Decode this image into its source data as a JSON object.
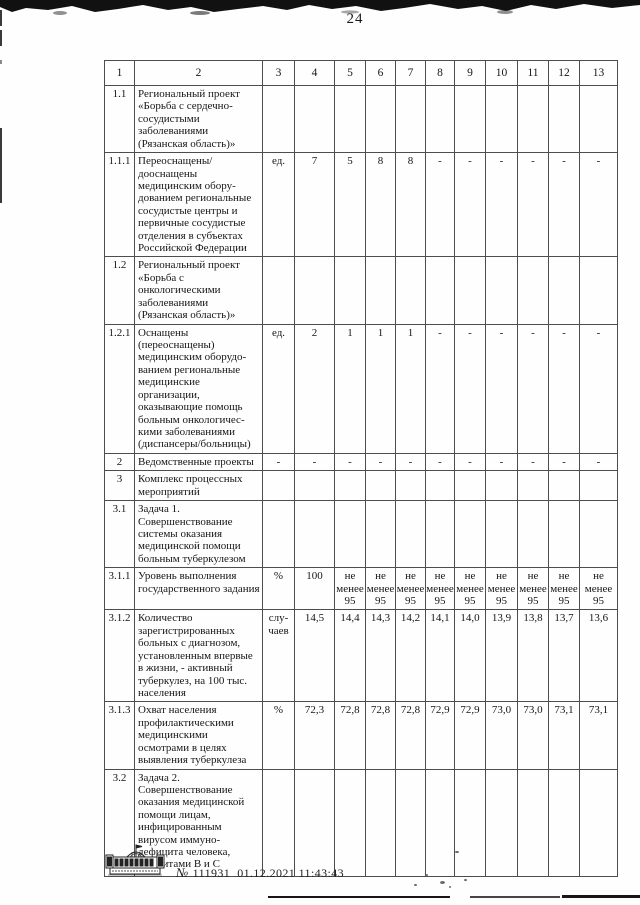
{
  "page": {
    "number": "24"
  },
  "table": {
    "header": [
      "1",
      "2",
      "3",
      "4",
      "5",
      "6",
      "7",
      "8",
      "9",
      "10",
      "11",
      "12",
      "13"
    ],
    "rows": [
      {
        "num": "1.1",
        "name": "Региональный проект «Борьба с сердечно-сосудистыми заболеваниями (Рязанская область)»",
        "unit": "",
        "values": [
          "",
          "",
          "",
          "",
          "",
          "",
          "",
          "",
          "",
          ""
        ]
      },
      {
        "num": "1.1.1",
        "name": "Переоснащены/дооснаще­ны медицинским обору­дованием региональные сосудистые центры и первичные сосудистые отделения в субъектах Российской Федерации",
        "unit": "ед.",
        "values": [
          "7",
          "5",
          "8",
          "8",
          "-",
          "-",
          "-",
          "-",
          "-",
          "-"
        ]
      },
      {
        "num": "1.2",
        "name": "Региональный проект «Борьба с онкологическими заболеваниями (Рязанская область)»",
        "unit": "",
        "values": [
          "",
          "",
          "",
          "",
          "",
          "",
          "",
          "",
          "",
          ""
        ]
      },
      {
        "num": "1.2.1",
        "name": "Оснащены (переоснащены) медицинским оборудо­ванием региональные медицинские организации, оказывающие помощь больным онкологичес­кими заболеваниями (диспансеры/больницы)",
        "unit": "ед.",
        "values": [
          "2",
          "1",
          "1",
          "1",
          "-",
          "-",
          "-",
          "-",
          "-",
          "-"
        ]
      },
      {
        "num": "2",
        "name": "Ведомственные проекты",
        "unit": "-",
        "values": [
          "-",
          "-",
          "-",
          "-",
          "-",
          "-",
          "-",
          "-",
          "-",
          "-"
        ]
      },
      {
        "num": "3",
        "name": "Комплекс процессных мероприятий",
        "unit": "",
        "values": [
          "",
          "",
          "",
          "",
          "",
          "",
          "",
          "",
          "",
          ""
        ]
      },
      {
        "num": "3.1",
        "name": "Задача 1. Совершенствование системы оказания медицинской помощи больным туберкулезом",
        "unit": "",
        "values": [
          "",
          "",
          "",
          "",
          "",
          "",
          "",
          "",
          "",
          ""
        ]
      },
      {
        "num": "3.1.1",
        "name": "Уровень выполнения государственного задания",
        "unit": "%",
        "values": [
          "100",
          "не менее 95",
          "не менее 95",
          "не менее 95",
          "не менее 95",
          "не менее 95",
          "не менее 95",
          "не менее 95",
          "не менее 95",
          "не менее 95"
        ]
      },
      {
        "num": "3.1.2",
        "name": "Количество зарегистрированных больных с диагнозом, установленным впервые в жизни, - активный туберкулез, на 100 тыс. населения",
        "unit": "слу­чаев",
        "values": [
          "14,5",
          "14,4",
          "14,3",
          "14,2",
          "14,1",
          "14,0",
          "13,9",
          "13,8",
          "13,7",
          "13,6"
        ]
      },
      {
        "num": "3.1.3",
        "name": "Охват населения профилактическими медицинскими осмотрами в целях выявления туберкулеза",
        "unit": "%",
        "values": [
          "72,3",
          "72,8",
          "72,8",
          "72,8",
          "72,9",
          "72,9",
          "73,0",
          "73,0",
          "73,1",
          "73,1"
        ]
      },
      {
        "num": "3.2",
        "name": "Задача 2. Совершенствование оказания медицинской помощи лицам, инфицированным вирусом иммуно­дефицита человека, гепатитами В и С",
        "unit": "",
        "values": [
          "",
          "",
          "",
          "",
          "",
          "",
          "",
          "",
          "",
          ""
        ]
      }
    ]
  },
  "footer": {
    "stamp_icon": "government-building-icon",
    "number_sign": "№",
    "registration_number": "111931",
    "registration_datetime": "01.12.2021 11:43:43"
  }
}
